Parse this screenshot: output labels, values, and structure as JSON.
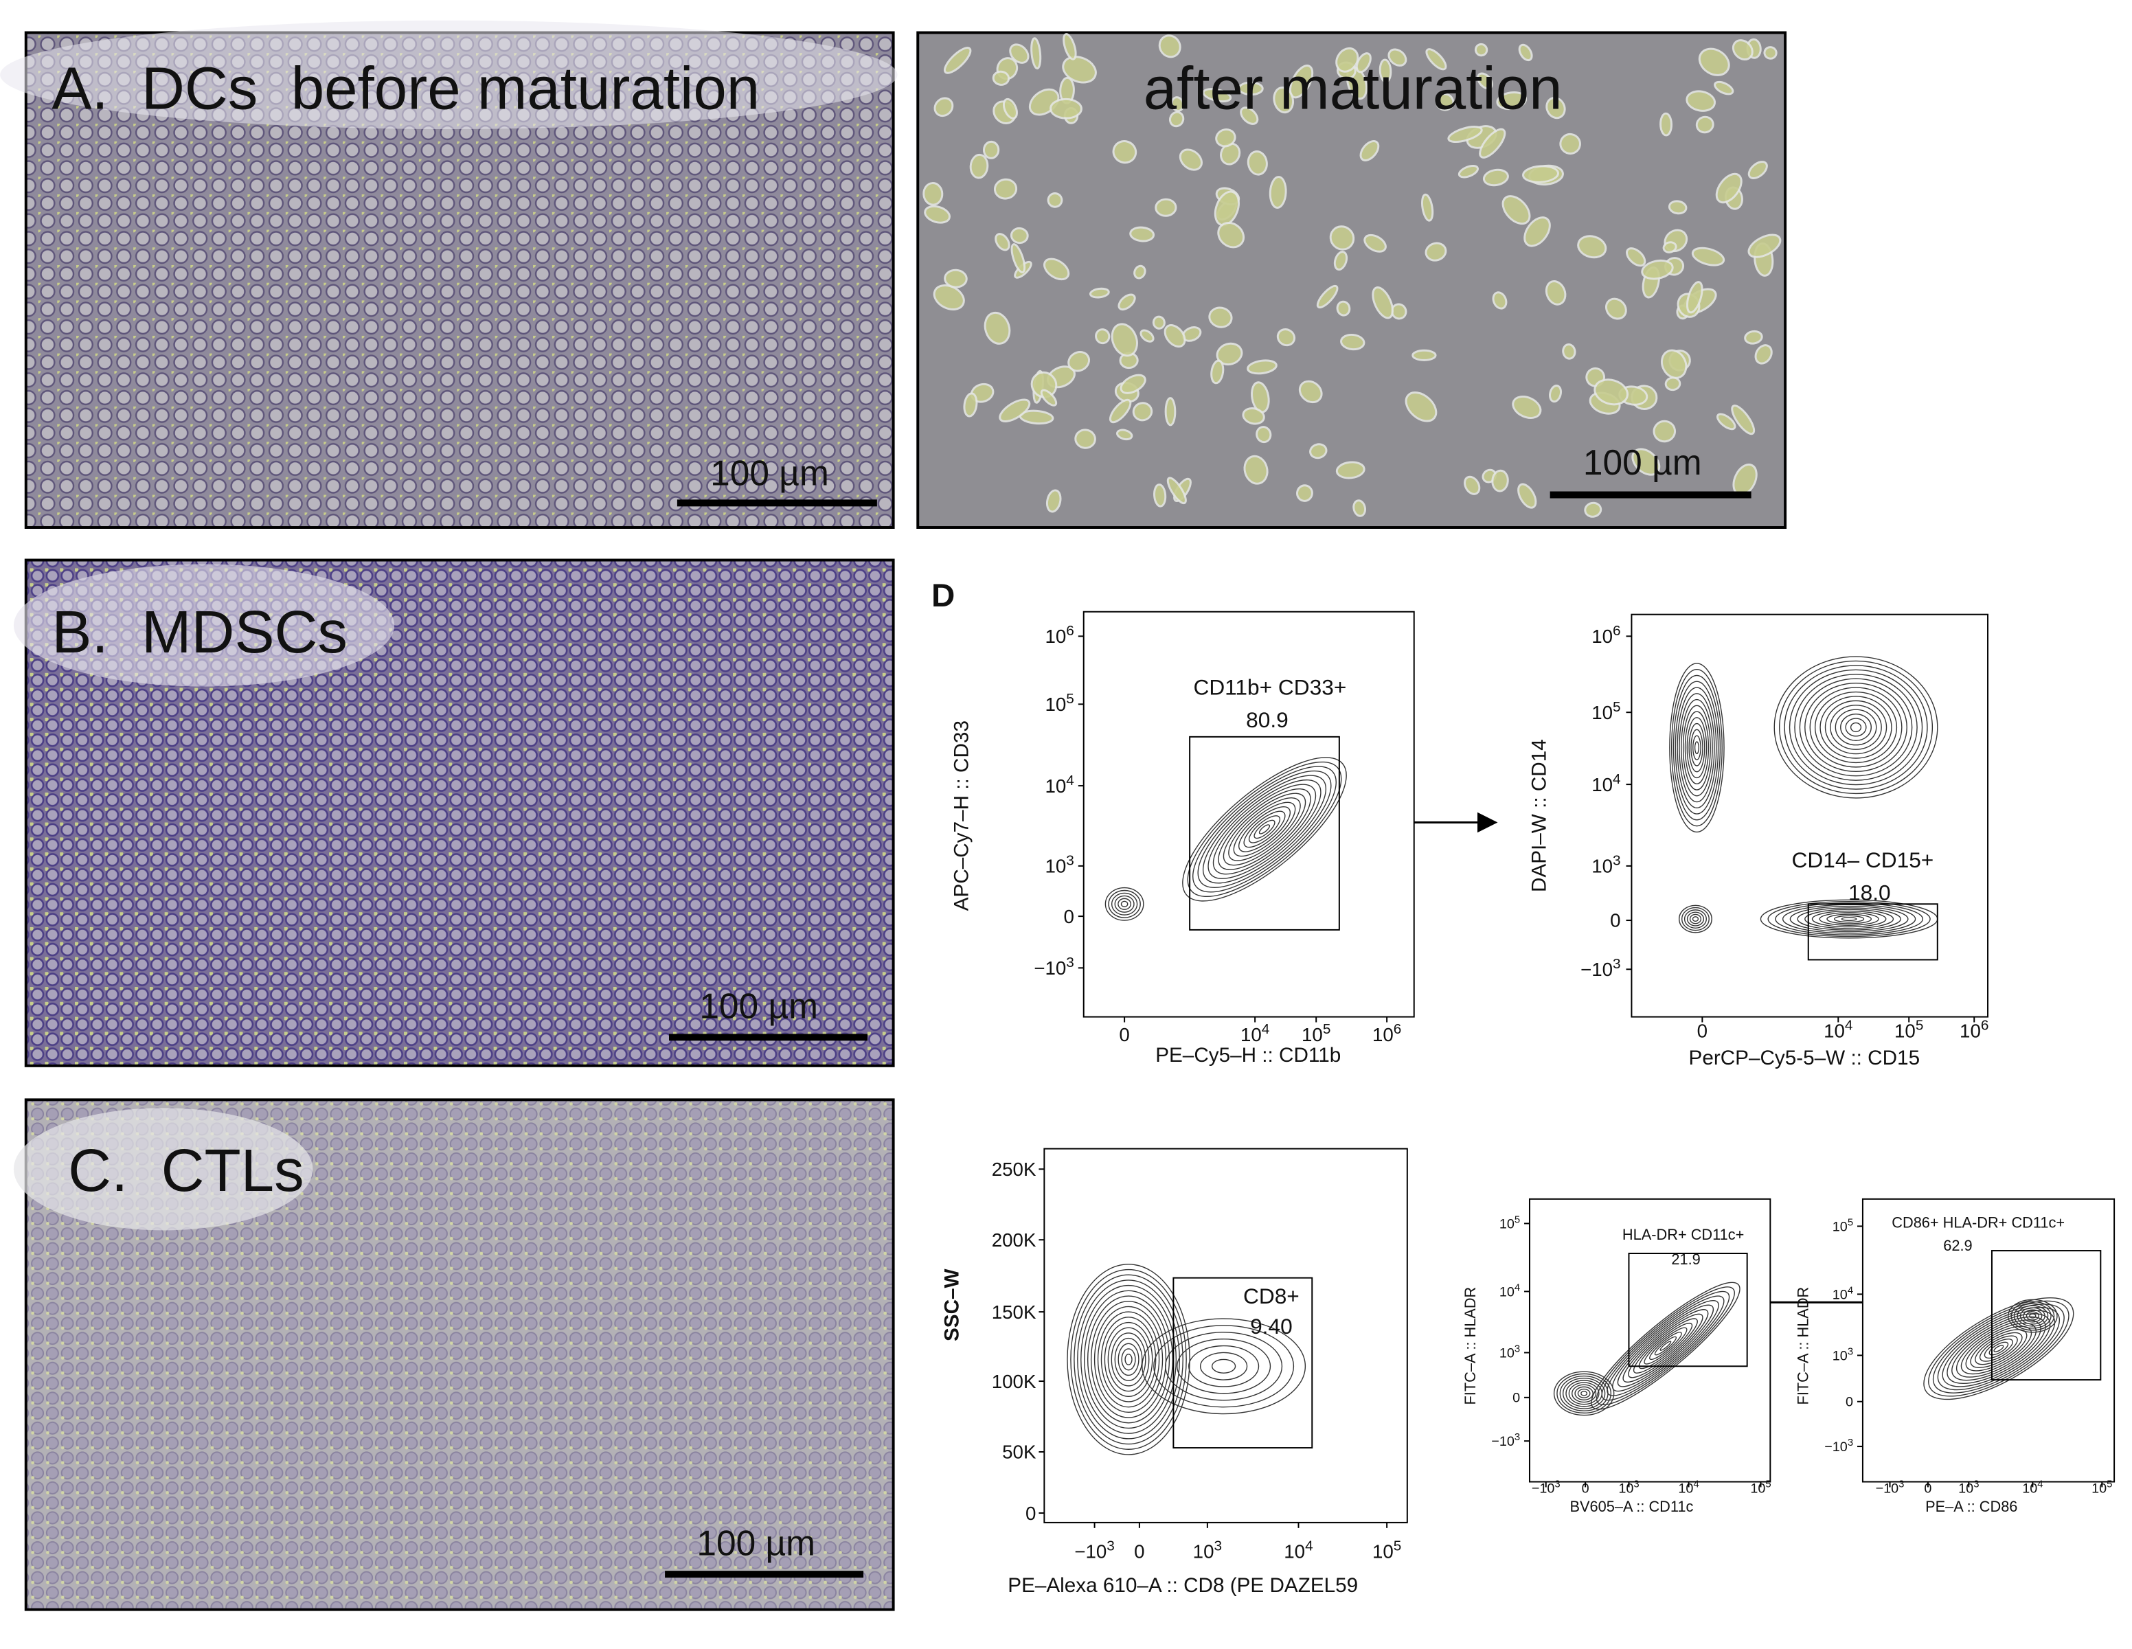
{
  "panels": {
    "a": {
      "label": "A.  DCs  before maturation",
      "after_label": "after maturation",
      "scale_bar_left": "100 µm",
      "scale_bar_right": "100 µm"
    },
    "b": {
      "label": "B.  MDSCs",
      "scale_bar": "100 µm"
    },
    "c": {
      "label": "C.  CTLs",
      "scale_bar": "100 µm"
    },
    "d": {
      "label": "D"
    }
  },
  "flow_plots": [
    {
      "y_label": "APC–Cy7–H :: CD33",
      "x_label": "PE–Cy5–H :: CD11b",
      "gate_label": "CD11b+ CD33+",
      "gate_value": "80.9",
      "yticks": [
        {
          "base": "10",
          "exp": "6"
        },
        {
          "base": "10",
          "exp": "5"
        },
        {
          "base": "10",
          "exp": "4"
        },
        {
          "base": "10",
          "exp": "3"
        },
        {
          "base": "0"
        },
        {
          "base": "−10",
          "exp": "3"
        }
      ],
      "xticks": [
        {
          "base": "0"
        },
        {
          "base": "10",
          "exp": "4"
        },
        {
          "base": "10",
          "exp": "5"
        },
        {
          "base": "10",
          "exp": "6"
        }
      ]
    },
    {
      "y_label": "DAPI–W :: CD14",
      "x_label": "PerCP–Cy5-5–W :: CD15",
      "gate_label": "CD14– CD15+",
      "gate_value": "18.0",
      "yticks": [
        {
          "base": "10",
          "exp": "6"
        },
        {
          "base": "10",
          "exp": "5"
        },
        {
          "base": "10",
          "exp": "4"
        },
        {
          "base": "10",
          "exp": "3"
        },
        {
          "base": "0"
        },
        {
          "base": "−10",
          "exp": "3"
        }
      ],
      "xticks": [
        {
          "base": "0"
        },
        {
          "base": "10",
          "exp": "4"
        },
        {
          "base": "10",
          "exp": "5"
        },
        {
          "base": "10",
          "exp": "6"
        }
      ]
    },
    {
      "y_label": "SSC–W",
      "x_label": "PE–Alexa 610–A :: CD8 (PE DAZEL59",
      "gate_label": "CD8+",
      "gate_value": "9.40",
      "yticks": [
        {
          "base": "250K"
        },
        {
          "base": "200K"
        },
        {
          "base": "150K"
        },
        {
          "base": "100K"
        },
        {
          "base": "50K"
        },
        {
          "base": "0"
        }
      ],
      "xticks": [
        {
          "base": "−10",
          "exp": "3"
        },
        {
          "base": "0"
        },
        {
          "base": "10",
          "exp": "3"
        },
        {
          "base": "10",
          "exp": "4"
        },
        {
          "base": "10",
          "exp": "5"
        }
      ]
    },
    {
      "y_label": "FITC–A :: HLADR",
      "x_label": "BV605–A :: CD11c",
      "gate_label": "HLA-DR+ CD11c+",
      "gate_value": "21.9",
      "yticks": [
        {
          "base": "10",
          "exp": "5"
        },
        {
          "base": "10",
          "exp": "4"
        },
        {
          "base": "10",
          "exp": "3"
        },
        {
          "base": "0"
        },
        {
          "base": "−10",
          "exp": "3"
        }
      ],
      "xticks": [
        {
          "base": "−10",
          "exp": "3"
        },
        {
          "base": "0"
        },
        {
          "base": "10",
          "exp": "3"
        },
        {
          "base": "10",
          "exp": "4"
        },
        {
          "base": "10",
          "exp": "5"
        }
      ]
    },
    {
      "y_label": "FITC–A :: HLADR",
      "x_label": "PE–A :: CD86",
      "gate_label": "CD86+ HLA-DR+ CD11c+",
      "gate_value": "62.9",
      "yticks": [
        {
          "base": "10",
          "exp": "5"
        },
        {
          "base": "10",
          "exp": "4"
        },
        {
          "base": "10",
          "exp": "3"
        },
        {
          "base": "0"
        },
        {
          "base": "−10",
          "exp": "3"
        }
      ],
      "xticks": [
        {
          "base": "−10",
          "exp": "3"
        },
        {
          "base": "0"
        },
        {
          "base": "10",
          "exp": "3"
        },
        {
          "base": "10",
          "exp": "4"
        },
        {
          "base": "10",
          "exp": "5"
        }
      ]
    }
  ]
}
